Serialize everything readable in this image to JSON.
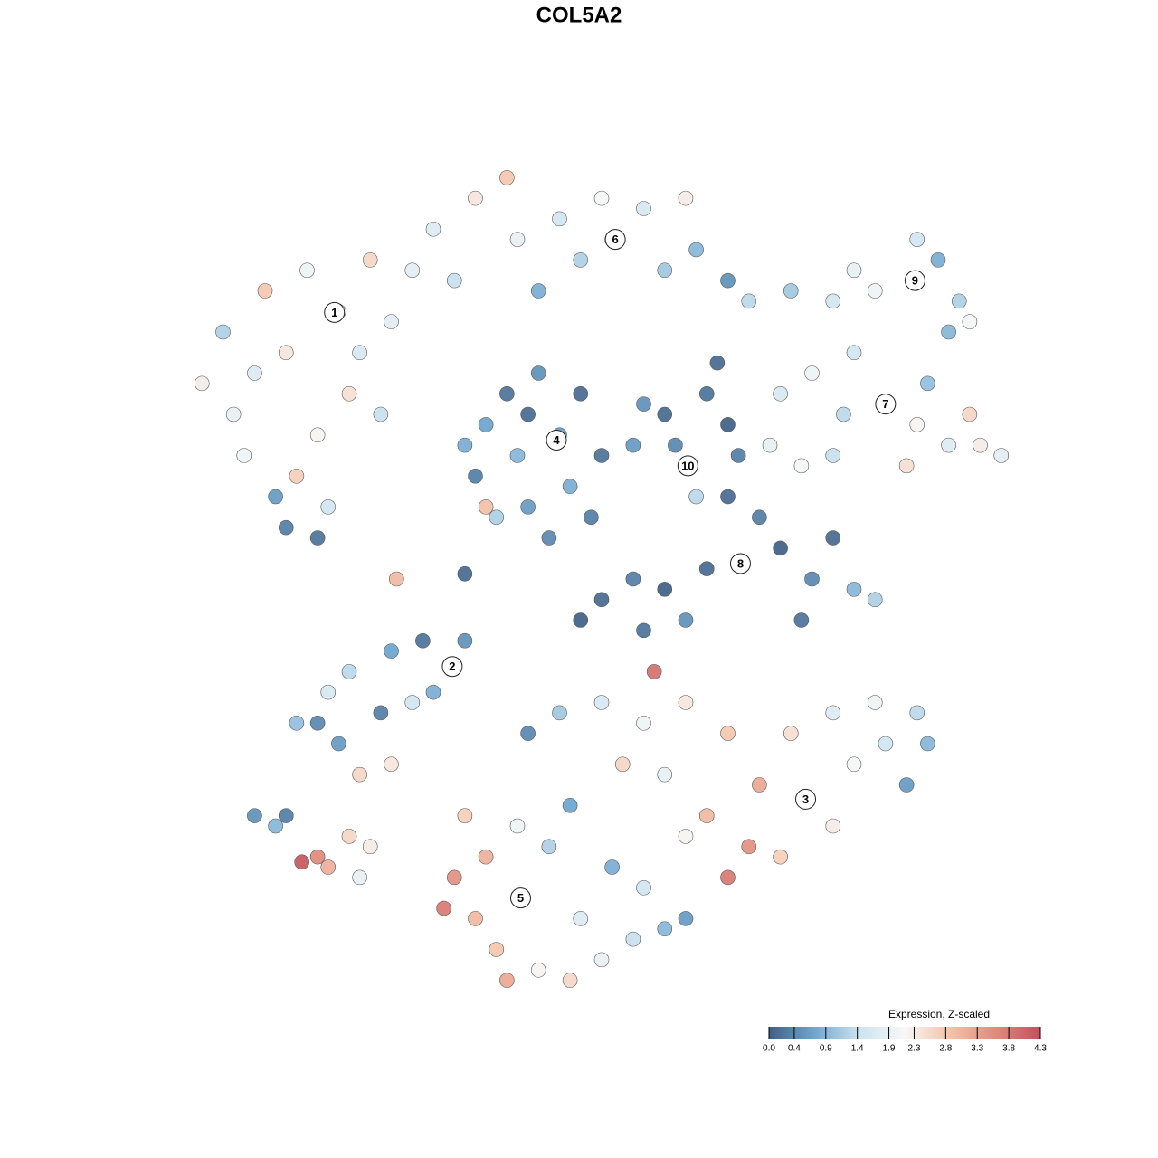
{
  "chart_data": {
    "type": "scatter",
    "title": "COL5A2",
    "xlim": [
      -40,
      40
    ],
    "ylim": [
      -40,
      40
    ],
    "colorbar": {
      "title": "Expression, Z-scaled",
      "clim": [
        0,
        4.3
      ],
      "ticks": [
        {
          "value": 0,
          "label": "0.0"
        },
        0.4,
        0.9,
        1.4,
        1.9,
        2.3,
        2.8,
        3.3,
        3.8,
        4.3
      ],
      "colors": [
        "#3f5f86",
        "#6ea6cf",
        "#cde3ef",
        "#f7f7f7",
        "#f4c2a8",
        "#e08b7c",
        "#c44e5e"
      ]
    },
    "points": [
      {
        "x": -25,
        "y": 26,
        "value": 2.1
      },
      {
        "x": -30,
        "y": 22,
        "value": 2.4
      },
      {
        "x": -33,
        "y": 20,
        "value": 1.7
      },
      {
        "x": -28,
        "y": 30,
        "value": 2.0
      },
      {
        "x": -22,
        "y": 31,
        "value": 2.6
      },
      {
        "x": -20,
        "y": 25,
        "value": 1.8
      },
      {
        "x": -24,
        "y": 18,
        "value": 2.5
      },
      {
        "x": -27,
        "y": 14,
        "value": 2.2
      },
      {
        "x": -29,
        "y": 10,
        "value": 2.7
      },
      {
        "x": -26,
        "y": 7,
        "value": 1.5
      },
      {
        "x": -31,
        "y": 8,
        "value": 0.6
      },
      {
        "x": -35,
        "y": 16,
        "value": 1.9
      },
      {
        "x": -38,
        "y": 19,
        "value": 2.3
      },
      {
        "x": -36,
        "y": 24,
        "value": 1.2
      },
      {
        "x": -32,
        "y": 28,
        "value": 2.8
      },
      {
        "x": -23,
        "y": 22,
        "value": 1.6
      },
      {
        "x": -21,
        "y": 16,
        "value": 1.4
      },
      {
        "x": -30,
        "y": 5,
        "value": 0.3
      },
      {
        "x": -27,
        "y": 4,
        "value": 0.2
      },
      {
        "x": -34,
        "y": 12,
        "value": 2.0
      },
      {
        "x": -16,
        "y": 34,
        "value": 1.7
      },
      {
        "x": -12,
        "y": 37,
        "value": 2.4
      },
      {
        "x": -9,
        "y": 39,
        "value": 2.8
      },
      {
        "x": -8,
        "y": 33,
        "value": 1.9
      },
      {
        "x": -4,
        "y": 35,
        "value": 1.5
      },
      {
        "x": -2,
        "y": 31,
        "value": 1.2
      },
      {
        "x": 1,
        "y": 33,
        "value": 2.0
      },
      {
        "x": 4,
        "y": 36,
        "value": 1.6
      },
      {
        "x": 6,
        "y": 30,
        "value": 1.1
      },
      {
        "x": 9,
        "y": 32,
        "value": 0.9
      },
      {
        "x": 12,
        "y": 29,
        "value": 0.5
      },
      {
        "x": 14,
        "y": 27,
        "value": 1.3
      },
      {
        "x": -14,
        "y": 29,
        "value": 1.4
      },
      {
        "x": -6,
        "y": 28,
        "value": 0.8
      },
      {
        "x": 0,
        "y": 37,
        "value": 2.1
      },
      {
        "x": 8,
        "y": 37,
        "value": 2.3
      },
      {
        "x": -18,
        "y": 30,
        "value": 1.8
      },
      {
        "x": -4,
        "y": 14,
        "value": 0.6
      },
      {
        "x": -8,
        "y": 12,
        "value": 0.9
      },
      {
        "x": -11,
        "y": 15,
        "value": 0.7
      },
      {
        "x": -12,
        "y": 10,
        "value": 0.3
      },
      {
        "x": -9,
        "y": 18,
        "value": 0.2
      },
      {
        "x": -6,
        "y": 20,
        "value": 0.5
      },
      {
        "x": -2,
        "y": 18,
        "value": 0.1
      },
      {
        "x": 0,
        "y": 12,
        "value": 0.2
      },
      {
        "x": -3,
        "y": 9,
        "value": 0.8
      },
      {
        "x": -7,
        "y": 7,
        "value": 0.6
      },
      {
        "x": -10,
        "y": 6,
        "value": 1.2
      },
      {
        "x": -5,
        "y": 4,
        "value": 0.4
      },
      {
        "x": -13,
        "y": 13,
        "value": 0.8
      },
      {
        "x": -1,
        "y": 6,
        "value": 0.3
      },
      {
        "x": -7,
        "y": 16,
        "value": 0.1
      },
      {
        "x": -11,
        "y": 7,
        "value": 2.9
      },
      {
        "x": 8,
        "y": 11,
        "value": 1.0
      },
      {
        "x": 6,
        "y": 16,
        "value": 0.1
      },
      {
        "x": 10,
        "y": 18,
        "value": 0.2
      },
      {
        "x": 12,
        "y": 15,
        "value": 0.0
      },
      {
        "x": 4,
        "y": 17,
        "value": 0.5
      },
      {
        "x": 9,
        "y": 8,
        "value": 1.3
      },
      {
        "x": 7,
        "y": 13,
        "value": 0.4
      },
      {
        "x": 11,
        "y": 21,
        "value": 0.1
      },
      {
        "x": 3,
        "y": 13,
        "value": 0.6
      },
      {
        "x": 13,
        "y": 12,
        "value": 0.3
      },
      {
        "x": 29.8,
        "y": 29,
        "value": 1.8
      },
      {
        "x": 26,
        "y": 28,
        "value": 2.0
      },
      {
        "x": 22,
        "y": 27,
        "value": 1.5
      },
      {
        "x": 18,
        "y": 28,
        "value": 1.1
      },
      {
        "x": 32,
        "y": 31,
        "value": 0.8
      },
      {
        "x": 34,
        "y": 27,
        "value": 1.2
      },
      {
        "x": 30,
        "y": 33,
        "value": 1.5
      },
      {
        "x": 24,
        "y": 30,
        "value": 1.9
      },
      {
        "x": 33,
        "y": 24,
        "value": 0.9
      },
      {
        "x": 35,
        "y": 25,
        "value": 2.1
      },
      {
        "x": 27,
        "y": 17,
        "value": 1.9
      },
      {
        "x": 20,
        "y": 20,
        "value": 2.0
      },
      {
        "x": 17,
        "y": 18,
        "value": 1.6
      },
      {
        "x": 23,
        "y": 16,
        "value": 1.3
      },
      {
        "x": 30,
        "y": 15,
        "value": 2.2
      },
      {
        "x": 33,
        "y": 13,
        "value": 1.7
      },
      {
        "x": 36,
        "y": 13,
        "value": 2.3
      },
      {
        "x": 38,
        "y": 12,
        "value": 1.8
      },
      {
        "x": 24,
        "y": 22,
        "value": 1.5
      },
      {
        "x": 19,
        "y": 11,
        "value": 2.1
      },
      {
        "x": 22,
        "y": 12,
        "value": 1.4
      },
      {
        "x": 29,
        "y": 11,
        "value": 2.5
      },
      {
        "x": 16,
        "y": 13,
        "value": 1.9
      },
      {
        "x": 31,
        "y": 19,
        "value": 1.0
      },
      {
        "x": 35,
        "y": 16,
        "value": 2.6
      },
      {
        "x": 13.2,
        "y": 1.5,
        "value": 0.2
      },
      {
        "x": 10,
        "y": 1,
        "value": 0.1
      },
      {
        "x": 6,
        "y": -1,
        "value": 0.0
      },
      {
        "x": 3,
        "y": 0,
        "value": 0.3
      },
      {
        "x": 0,
        "y": -2,
        "value": 0.1
      },
      {
        "x": 17,
        "y": 3,
        "value": 0.0
      },
      {
        "x": 20,
        "y": 0,
        "value": 0.4
      },
      {
        "x": 24,
        "y": -1,
        "value": 0.9
      },
      {
        "x": 26,
        "y": -2,
        "value": 1.2
      },
      {
        "x": 22,
        "y": 4,
        "value": 0.1
      },
      {
        "x": 19,
        "y": -4,
        "value": 0.2
      },
      {
        "x": 15,
        "y": 6,
        "value": 0.3
      },
      {
        "x": 12,
        "y": 8,
        "value": 0.1
      },
      {
        "x": 8,
        "y": -4,
        "value": 0.5
      },
      {
        "x": 4,
        "y": -5,
        "value": 0.2
      },
      {
        "x": -2,
        "y": -4,
        "value": 0.0
      },
      {
        "x": -14.2,
        "y": -8.5,
        "value": 1.0
      },
      {
        "x": -17,
        "y": -6,
        "value": 0.2
      },
      {
        "x": -20,
        "y": -7,
        "value": 0.7
      },
      {
        "x": -24,
        "y": -9,
        "value": 1.3
      },
      {
        "x": -27,
        "y": -14,
        "value": 0.4
      },
      {
        "x": -29,
        "y": -14,
        "value": 1.0
      },
      {
        "x": -25,
        "y": -16,
        "value": 0.6
      },
      {
        "x": -21,
        "y": -13,
        "value": 0.3
      },
      {
        "x": -18,
        "y": -12,
        "value": 1.5
      },
      {
        "x": -23,
        "y": -19,
        "value": 2.6
      },
      {
        "x": -20,
        "y": -18,
        "value": 2.4
      },
      {
        "x": -16,
        "y": -11,
        "value": 0.8
      },
      {
        "x": -13,
        "y": -6,
        "value": 0.5
      },
      {
        "x": -26,
        "y": -11,
        "value": 1.6
      },
      {
        "x": 19.4,
        "y": -21.4,
        "value": 2.9
      },
      {
        "x": 15,
        "y": -20,
        "value": 3.2
      },
      {
        "x": 12,
        "y": -15,
        "value": 2.8
      },
      {
        "x": 8,
        "y": -12,
        "value": 2.4
      },
      {
        "x": 4,
        "y": -14,
        "value": 2.0
      },
      {
        "x": 0,
        "y": -12,
        "value": 1.6
      },
      {
        "x": -4,
        "y": -13,
        "value": 1.1
      },
      {
        "x": -7,
        "y": -15,
        "value": 0.4
      },
      {
        "x": 2,
        "y": -18,
        "value": 2.6
      },
      {
        "x": 6,
        "y": -19,
        "value": 1.9
      },
      {
        "x": 10,
        "y": -23,
        "value": 3.0
      },
      {
        "x": 14,
        "y": -26,
        "value": 3.5
      },
      {
        "x": 12,
        "y": -29,
        "value": 3.8
      },
      {
        "x": 17,
        "y": -27,
        "value": 2.7
      },
      {
        "x": 22,
        "y": -24,
        "value": 2.3
      },
      {
        "x": 24,
        "y": -18,
        "value": 2.1
      },
      {
        "x": 27,
        "y": -16,
        "value": 1.5
      },
      {
        "x": 30,
        "y": -13,
        "value": 1.3
      },
      {
        "x": 31,
        "y": -16,
        "value": 0.9
      },
      {
        "x": 26,
        "y": -12,
        "value": 2.0
      },
      {
        "x": 22,
        "y": -13,
        "value": 1.7
      },
      {
        "x": 18,
        "y": -15,
        "value": 2.5
      },
      {
        "x": 5,
        "y": -9,
        "value": 3.9
      },
      {
        "x": 8,
        "y": -25,
        "value": 2.2
      },
      {
        "x": 29,
        "y": -20,
        "value": 0.6
      },
      {
        "x": -7.7,
        "y": -31,
        "value": 2.5
      },
      {
        "x": -11,
        "y": -27,
        "value": 3.1
      },
      {
        "x": -14,
        "y": -29,
        "value": 3.5
      },
      {
        "x": -15,
        "y": -32,
        "value": 3.8
      },
      {
        "x": -12,
        "y": -33,
        "value": 3.0
      },
      {
        "x": -10,
        "y": -36,
        "value": 2.8
      },
      {
        "x": -6,
        "y": -38,
        "value": 2.2
      },
      {
        "x": -3,
        "y": -39,
        "value": 2.6
      },
      {
        "x": 0,
        "y": -37,
        "value": 1.9
      },
      {
        "x": 3,
        "y": -35,
        "value": 1.4
      },
      {
        "x": 6,
        "y": -34,
        "value": 0.9
      },
      {
        "x": 8,
        "y": -33,
        "value": 0.6
      },
      {
        "x": -2,
        "y": -33,
        "value": 1.7
      },
      {
        "x": -5,
        "y": -26,
        "value": 1.2
      },
      {
        "x": -3,
        "y": -22,
        "value": 0.7
      },
      {
        "x": -8,
        "y": -24,
        "value": 2.0
      },
      {
        "x": 1,
        "y": -28,
        "value": 0.8
      },
      {
        "x": -13,
        "y": -23,
        "value": 2.7
      },
      {
        "x": 4,
        "y": -30,
        "value": 1.5
      },
      {
        "x": -9,
        "y": -39,
        "value": 3.2
      },
      {
        "x": -27,
        "y": -27,
        "value": 3.6
      },
      {
        "x": -28.5,
        "y": -27.5,
        "value": 4.2
      },
      {
        "x": -26,
        "y": -28,
        "value": 3.1
      },
      {
        "x": -24,
        "y": -25,
        "value": 2.6
      },
      {
        "x": -31,
        "y": -24,
        "value": 0.9
      },
      {
        "x": -30,
        "y": -23,
        "value": 0.3
      },
      {
        "x": -22,
        "y": -26,
        "value": 2.3
      },
      {
        "x": -23,
        "y": -29,
        "value": 1.9
      },
      {
        "x": -33,
        "y": -23,
        "value": 0.5
      },
      {
        "x": -19.5,
        "y": 0,
        "value": 3.0
      },
      {
        "x": -13,
        "y": 0.5,
        "value": 0.1
      }
    ],
    "cluster_labels": [
      {
        "label": "1",
        "x": -25.4,
        "y": 25.9
      },
      {
        "label": "2",
        "x": -14.2,
        "y": -8.5
      },
      {
        "label": "3",
        "x": 19.4,
        "y": -21.4
      },
      {
        "label": "4",
        "x": -4.3,
        "y": 13.5
      },
      {
        "label": "5",
        "x": -7.7,
        "y": -31
      },
      {
        "label": "6",
        "x": 1.3,
        "y": 33
      },
      {
        "label": "7",
        "x": 27,
        "y": 17
      },
      {
        "label": "8",
        "x": 13.2,
        "y": 1.5
      },
      {
        "label": "9",
        "x": 29.8,
        "y": 29
      },
      {
        "label": "10",
        "x": 8.2,
        "y": 11
      }
    ]
  }
}
